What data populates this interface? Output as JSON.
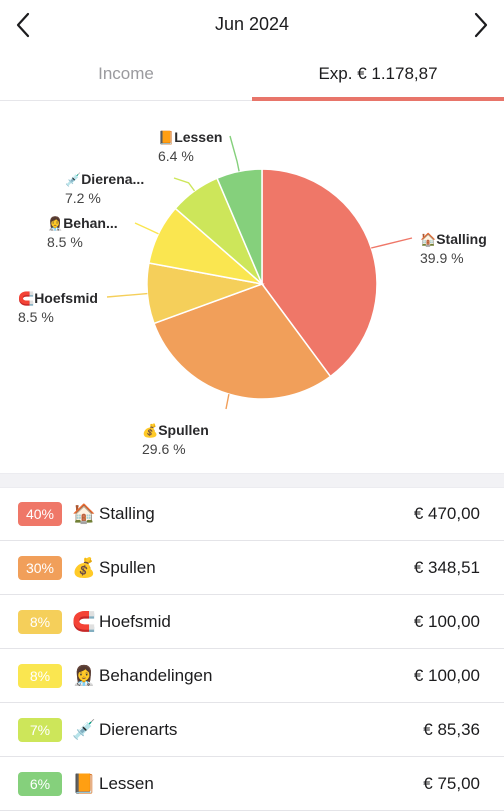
{
  "header": {
    "title": "Jun 2024",
    "prev_icon": "chevron-left-icon",
    "next_icon": "chevron-right-icon"
  },
  "tabs": [
    {
      "label": "Income",
      "active": false
    },
    {
      "label": "Exp. € 1.178,87",
      "active": true
    }
  ],
  "colors": {
    "accent": "#e8756a"
  },
  "chart_data": {
    "type": "pie",
    "slices": [
      {
        "name": "Stalling",
        "emoji": "🏠",
        "percent": 39.9,
        "label": "39.9 %",
        "color": "#ef7768"
      },
      {
        "name": "Spullen",
        "emoji": "💰",
        "percent": 29.6,
        "label": "29.6 %",
        "color": "#f19f5a"
      },
      {
        "name": "Hoefsmid",
        "emoji": "🧲",
        "percent": 8.5,
        "label": "8.5 %",
        "color": "#f5cf5a"
      },
      {
        "name": "Behan...",
        "emoji": "👩‍⚕️",
        "percent": 8.5,
        "label": "8.5 %",
        "color": "#fae650"
      },
      {
        "name": "Dierena...",
        "emoji": "💉",
        "percent": 7.2,
        "label": "7.2 %",
        "color": "#cde65a"
      },
      {
        "name": "Lessen",
        "emoji": "📙",
        "percent": 6.4,
        "label": "6.4 %",
        "color": "#85d07c"
      }
    ]
  },
  "categories": [
    {
      "pct": "40%",
      "emoji": "🏠",
      "name": "Stalling",
      "amount": "€ 470,00",
      "color": "#ef7768"
    },
    {
      "pct": "30%",
      "emoji": "💰",
      "name": "Spullen",
      "amount": "€ 348,51",
      "color": "#f19f5a"
    },
    {
      "pct": "8%",
      "emoji": "🧲",
      "name": "Hoefsmid",
      "amount": "€ 100,00",
      "color": "#f5cf5a"
    },
    {
      "pct": "8%",
      "emoji": "👩‍⚕️",
      "name": "Behandelingen",
      "amount": "€ 100,00",
      "color": "#fae650"
    },
    {
      "pct": "7%",
      "emoji": "💉",
      "name": "Dierenarts",
      "amount": "€ 85,36",
      "color": "#cde65a"
    },
    {
      "pct": "6%",
      "emoji": "📙",
      "name": "Lessen",
      "amount": "€ 75,00",
      "color": "#85d07c"
    }
  ]
}
